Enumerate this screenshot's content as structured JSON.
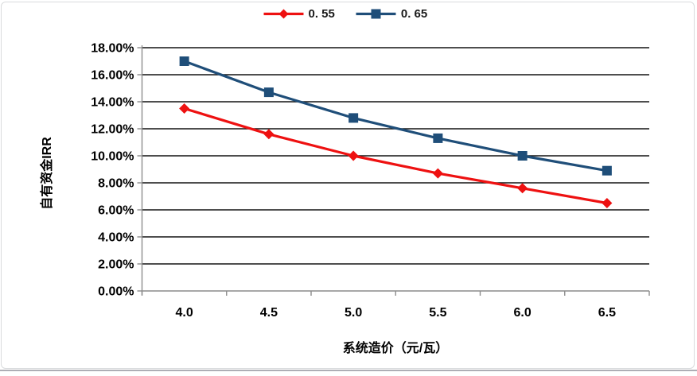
{
  "chart_data": {
    "type": "line",
    "title": "",
    "xlabel": "系统造价（元/瓦）",
    "ylabel": "自有资金IRR",
    "categories": [
      "4.0",
      "4.5",
      "5.0",
      "5.5",
      "6.0",
      "6.5"
    ],
    "x_values": [
      4.0,
      4.5,
      5.0,
      5.5,
      6.0,
      6.5
    ],
    "ylim": [
      0,
      18
    ],
    "y_tick_step": 2,
    "y_tick_labels": [
      "0.00%",
      "2.00%",
      "4.00%",
      "6.00%",
      "8.00%",
      "10.00%",
      "12.00%",
      "14.00%",
      "16.00%",
      "18.00%"
    ],
    "grid": true,
    "legend_position": "top-center",
    "series": [
      {
        "name": "0. 55",
        "color": "#ee1111",
        "marker": "diamond",
        "values": [
          13.5,
          11.6,
          10.0,
          8.7,
          7.6,
          6.5
        ]
      },
      {
        "name": "0. 65",
        "color": "#1f4e79",
        "marker": "square",
        "values": [
          17.0,
          14.7,
          12.8,
          11.3,
          10.0,
          8.9
        ]
      }
    ],
    "units": "percent IRR"
  },
  "style_colors": {
    "gridline": "#141414",
    "axis_line": "#8c8c8c",
    "tick_text": "#000000",
    "frame_border": "#d9dbdd",
    "bottom_edge": "#aeaeb5"
  }
}
